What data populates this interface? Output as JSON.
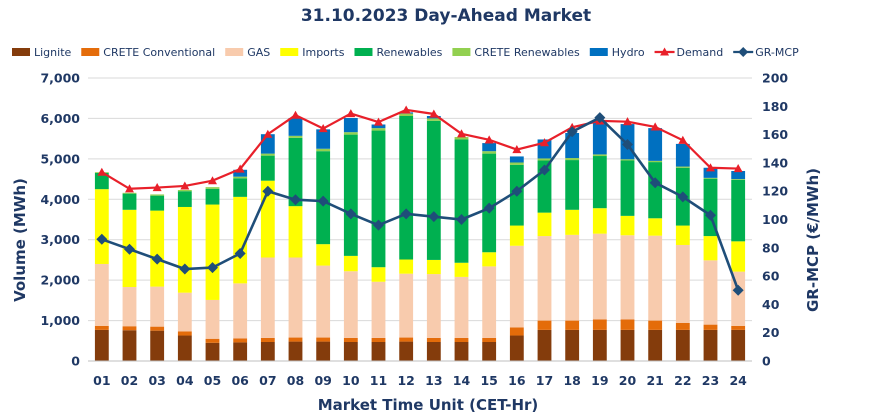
{
  "chart_data": {
    "type": "bar",
    "title": "31.10.2023  Day-Ahead Market",
    "xlabel": "Market Time Unit (CET-Hr)",
    "ylabel": "Volume (MWh)",
    "y2label": "GR-MCP (€/MWh)",
    "ylim": [
      0,
      7000
    ],
    "y2lim": [
      0,
      200
    ],
    "yticks": [
      "0",
      "1,000",
      "2,000",
      "3,000",
      "4,000",
      "5,000",
      "6,000",
      "7,000"
    ],
    "y2ticks": [
      "0",
      "20",
      "40",
      "60",
      "80",
      "100",
      "120",
      "140",
      "160",
      "180",
      "200"
    ],
    "grid": true,
    "legend_position": "top",
    "categories": [
      "01",
      "02",
      "03",
      "04",
      "05",
      "06",
      "07",
      "08",
      "09",
      "10",
      "11",
      "12",
      "13",
      "14",
      "15",
      "16",
      "17",
      "18",
      "19",
      "20",
      "21",
      "22",
      "23",
      "24"
    ],
    "series": [
      {
        "name": "Lignite",
        "kind": "stacked-bar",
        "color": "#843c0c",
        "values": [
          770,
          760,
          750,
          630,
          450,
          460,
          470,
          480,
          480,
          470,
          470,
          480,
          470,
          470,
          470,
          630,
          770,
          770,
          770,
          770,
          770,
          770,
          770,
          770
        ]
      },
      {
        "name": "CRETE Conventional",
        "kind": "stacked-bar",
        "color": "#e46c0a",
        "values": [
          100,
          100,
          100,
          100,
          100,
          100,
          100,
          100,
          100,
          100,
          100,
          100,
          100,
          100,
          100,
          200,
          230,
          230,
          260,
          260,
          230,
          170,
          130,
          100
        ]
      },
      {
        "name": "GAS",
        "kind": "stacked-bar",
        "color": "#f8cbad",
        "values": [
          1530,
          970,
          990,
          960,
          960,
          1360,
          1990,
          1980,
          1780,
          1650,
          1390,
          1580,
          1580,
          1510,
          1770,
          2020,
          2090,
          2120,
          2120,
          2080,
          2100,
          1930,
          1590,
          1340
        ]
      },
      {
        "name": "Imports",
        "kind": "stacked-bar",
        "color": "#ffff00",
        "values": [
          1850,
          1910,
          1880,
          2120,
          2360,
          2140,
          1900,
          1270,
          530,
          380,
          360,
          350,
          350,
          350,
          350,
          500,
          580,
          620,
          630,
          480,
          430,
          480,
          600,
          750
        ]
      },
      {
        "name": "Renewables",
        "kind": "stacked-bar",
        "color": "#00b050",
        "values": [
          400,
          400,
          370,
          390,
          390,
          460,
          620,
          1690,
          2300,
          3000,
          3380,
          3550,
          3440,
          3050,
          2440,
          1500,
          1290,
          1230,
          1290,
          1370,
          1390,
          1430,
          1420,
          1520
        ]
      },
      {
        "name": "CRETE Renewables",
        "kind": "stacked-bar",
        "color": "#92d050",
        "values": [
          20,
          20,
          30,
          30,
          40,
          40,
          50,
          50,
          60,
          60,
          60,
          60,
          60,
          60,
          60,
          60,
          50,
          50,
          40,
          30,
          30,
          30,
          20,
          20
        ]
      },
      {
        "name": "Hydro",
        "kind": "stacked-bar",
        "color": "#0070c0",
        "values": [
          0,
          0,
          0,
          0,
          0,
          170,
          480,
          440,
          480,
          350,
          90,
          30,
          60,
          0,
          200,
          150,
          470,
          620,
          830,
          870,
          810,
          560,
          250,
          200
        ]
      },
      {
        "name": "Demand",
        "kind": "line",
        "axis": "left",
        "color": "#e8202a",
        "values": [
          4670,
          4260,
          4290,
          4330,
          4460,
          4750,
          5610,
          6080,
          5750,
          6120,
          5910,
          6210,
          6110,
          5620,
          5470,
          5230,
          5400,
          5780,
          5940,
          5920,
          5790,
          5460,
          4780,
          4760
        ]
      },
      {
        "name": "GR-MCP",
        "kind": "line",
        "axis": "right",
        "color": "#1f4e79",
        "values": [
          86,
          79,
          72,
          65,
          66,
          76,
          120,
          114,
          113,
          104,
          96,
          104,
          102,
          100,
          108,
          120,
          135,
          162,
          172,
          153,
          126,
          116,
          103,
          50
        ]
      }
    ]
  }
}
